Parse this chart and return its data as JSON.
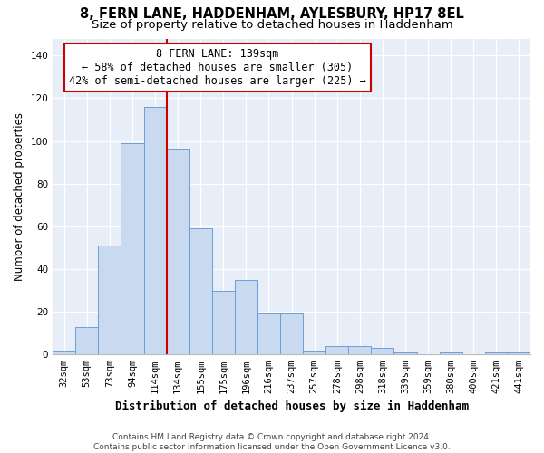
{
  "title": "8, FERN LANE, HADDENHAM, AYLESBURY, HP17 8EL",
  "subtitle": "Size of property relative to detached houses in Haddenham",
  "xlabel": "Distribution of detached houses by size in Haddenham",
  "ylabel": "Number of detached properties",
  "categories": [
    "32sqm",
    "53sqm",
    "73sqm",
    "94sqm",
    "114sqm",
    "134sqm",
    "155sqm",
    "175sqm",
    "196sqm",
    "216sqm",
    "237sqm",
    "257sqm",
    "278sqm",
    "298sqm",
    "318sqm",
    "339sqm",
    "359sqm",
    "380sqm",
    "400sqm",
    "421sqm",
    "441sqm"
  ],
  "values": [
    2,
    13,
    51,
    99,
    116,
    96,
    59,
    30,
    35,
    19,
    19,
    2,
    4,
    4,
    3,
    1,
    0,
    1,
    0,
    1,
    1
  ],
  "bar_color": "#c9d9f0",
  "bar_edge_color": "#6a9fd8",
  "bar_width": 1.0,
  "vline_x": 4.5,
  "vline_color": "#cc0000",
  "annotation_line1": "8 FERN LANE: 139sqm",
  "annotation_line2": "← 58% of detached houses are smaller (305)",
  "annotation_line3": "42% of semi-detached houses are larger (225) →",
  "annotation_box_color": "#ffffff",
  "annotation_box_edge": "#cc0000",
  "ylim": [
    0,
    148
  ],
  "yticks": [
    0,
    20,
    40,
    60,
    80,
    100,
    120,
    140
  ],
  "background_color": "#e8eef8",
  "footer": "Contains HM Land Registry data © Crown copyright and database right 2024.\nContains public sector information licensed under the Open Government Licence v3.0.",
  "title_fontsize": 10.5,
  "subtitle_fontsize": 9.5,
  "xlabel_fontsize": 9,
  "ylabel_fontsize": 8.5,
  "tick_fontsize": 7.5,
  "footer_fontsize": 6.5,
  "annot_fontsize": 8.5
}
